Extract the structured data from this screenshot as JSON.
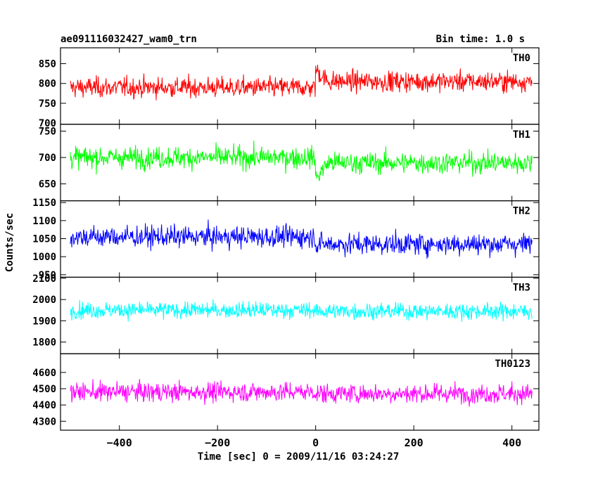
{
  "chart_data": {
    "type": "line",
    "title_left": "ae091116032427_wam0_trn",
    "title_right": "Bin time: 1.0 s",
    "xlabel": "Time [sec] 0 = 2009/11/16 03:24:27",
    "ylabel": "Counts/sec",
    "xlim": [
      -520,
      455
    ],
    "x_start": -500,
    "x_end": 441,
    "x_step": 1,
    "x_ticks": [
      -400,
      -200,
      0,
      200,
      400
    ],
    "x_tick_labels": [
      "−400",
      "−200",
      "0",
      "200",
      "400"
    ],
    "panels": [
      {
        "name": "TH0",
        "color": "#ff0000",
        "ylim": [
          697,
          890
        ],
        "ticks": [
          750,
          800,
          850
        ],
        "tick_labels": [
          "750",
          "800",
          "850"
        ],
        "tick_label_700": "700",
        "mean_before": 790,
        "mean_after": 805,
        "step_at": 0,
        "jump": 30,
        "noise": 30
      },
      {
        "name": "TH1",
        "color": "#00ff00",
        "ylim": [
          618,
          763
        ],
        "ticks": [
          650,
          700,
          750
        ],
        "tick_labels": [
          "650",
          "700",
          "750"
        ],
        "mean_before": 700,
        "mean_after": 690,
        "step_at": 0,
        "jump": -30,
        "noise": 24
      },
      {
        "name": "TH2",
        "color": "#0000ff",
        "ylim": [
          943,
          1155
        ],
        "ticks": [
          950,
          1000,
          1050,
          1100,
          1150
        ],
        "tick_labels": [
          "950",
          "1000",
          "1050",
          "1100",
          "1150"
        ],
        "mean_before": 1055,
        "mean_after": 1035,
        "step_at": 0,
        "jump": 0,
        "noise": 35
      },
      {
        "name": "TH3",
        "color": "#00ffff",
        "ylim": [
          1745,
          2105
        ],
        "ticks": [
          1800,
          1900,
          2000,
          2100
        ],
        "tick_labels": [
          "1800",
          "1900",
          "2000",
          "2100"
        ],
        "mean_before": 1950,
        "mean_after": 1945,
        "step_at": 0,
        "jump": 0,
        "noise": 45
      },
      {
        "name": "TH0123",
        "color": "#ff00ff",
        "ylim": [
          4245,
          4715
        ],
        "ticks": [
          4300,
          4400,
          4500,
          4600
        ],
        "tick_labels": [
          "4300",
          "4400",
          "4500",
          "4600"
        ],
        "mean_before": 4480,
        "mean_after": 4470,
        "step_at": 0,
        "jump": 0,
        "noise": 70
      }
    ]
  }
}
